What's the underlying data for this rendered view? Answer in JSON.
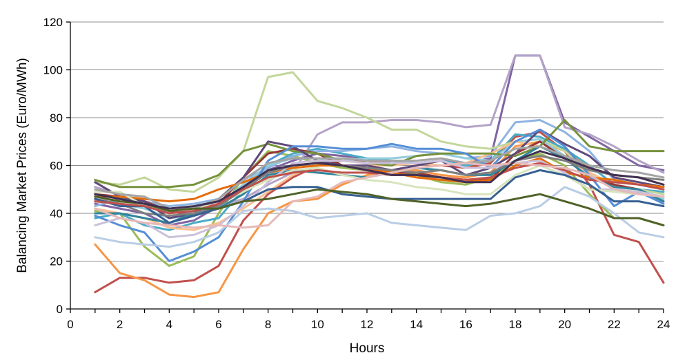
{
  "chart_data": {
    "type": "line",
    "title": "",
    "xlabel": "Hours",
    "ylabel": "Balancing Market Prices (Euro/MWh)",
    "xlim": [
      0,
      24
    ],
    "ylim": [
      0,
      120
    ],
    "xticks": [
      0,
      2,
      4,
      6,
      8,
      10,
      12,
      14,
      16,
      18,
      20,
      22,
      24
    ],
    "yticks": [
      0,
      20,
      40,
      60,
      80,
      100,
      120
    ],
    "grid": "horizontal",
    "legend": "none",
    "x": [
      1,
      2,
      3,
      4,
      5,
      6,
      7,
      8,
      9,
      10,
      11,
      12,
      13,
      14,
      15,
      16,
      17,
      18,
      19,
      20,
      21,
      22,
      23,
      24
    ],
    "series": [
      {
        "color": "#c0504d",
        "values": [
          7,
          13,
          13,
          11,
          12,
          18,
          37,
          48,
          55,
          60,
          62,
          62,
          61,
          61,
          60,
          59,
          61,
          72,
          74,
          66,
          52,
          31,
          28,
          11
        ]
      },
      {
        "color": "#9bbb59",
        "values": [
          41,
          40,
          26,
          18,
          22,
          40,
          55,
          66,
          64,
          61,
          59,
          58,
          58,
          56,
          53,
          52,
          55,
          62,
          65,
          60,
          48,
          38,
          38,
          35
        ]
      },
      {
        "color": "#8064a2",
        "values": [
          44,
          42,
          40,
          35,
          37,
          43,
          52,
          58,
          62,
          65,
          64,
          63,
          61,
          61,
          62,
          61,
          63,
          106,
          106,
          78,
          72,
          66,
          60,
          58
        ]
      },
      {
        "color": "#4bacc6",
        "values": [
          38,
          40,
          35,
          33,
          36,
          38,
          50,
          60,
          65,
          67,
          65,
          63,
          62,
          61,
          62,
          60,
          62,
          73,
          72,
          67,
          60,
          52,
          50,
          49
        ]
      },
      {
        "color": "#f79646",
        "values": [
          27,
          15,
          12,
          6,
          5,
          7,
          25,
          40,
          45,
          46,
          52,
          56,
          58,
          58,
          56,
          55,
          57,
          68,
          70,
          66,
          59,
          56,
          55,
          52
        ]
      },
      {
        "color": "#8db3e2",
        "values": [
          43,
          46,
          45,
          43,
          44,
          46,
          54,
          59,
          64,
          66,
          66,
          67,
          68,
          66,
          65,
          63,
          64,
          78,
          79,
          74,
          66,
          54,
          52,
          50
        ]
      },
      {
        "color": "#b3a2c7",
        "values": [
          51,
          48,
          45,
          41,
          40,
          43,
          46,
          52,
          57,
          73,
          78,
          78,
          79,
          79,
          78,
          76,
          77,
          106,
          106,
          76,
          73,
          68,
          62,
          57
        ]
      },
      {
        "color": "#c3d69b",
        "values": [
          53,
          52,
          55,
          50,
          49,
          55,
          66,
          97,
          99,
          87,
          84,
          80,
          75,
          75,
          70,
          68,
          67,
          70,
          71,
          66,
          57,
          52,
          50,
          48
        ]
      },
      {
        "color": "#93cddd",
        "values": [
          45,
          44,
          42,
          38,
          39,
          44,
          52,
          60,
          63,
          63,
          62,
          63,
          63,
          64,
          65,
          63,
          62,
          70,
          71,
          64,
          56,
          51,
          50,
          46
        ]
      },
      {
        "color": "#fac090",
        "values": [
          42,
          40,
          38,
          34,
          33,
          36,
          42,
          49,
          56,
          60,
          60,
          60,
          60,
          61,
          60,
          61,
          65,
          70,
          68,
          63,
          57,
          52,
          50,
          45
        ]
      },
      {
        "color": "#953735",
        "values": [
          48,
          47,
          45,
          41,
          39,
          44,
          55,
          65,
          67,
          65,
          60,
          58,
          57,
          57,
          55,
          54,
          54,
          65,
          70,
          63,
          55,
          52,
          50,
          45
        ]
      },
      {
        "color": "#76923c",
        "values": [
          54,
          51,
          51,
          51,
          52,
          56,
          66,
          69,
          66,
          65,
          62,
          61,
          60,
          64,
          65,
          65,
          65,
          64,
          68,
          79,
          68,
          66,
          66,
          66
        ]
      },
      {
        "color": "#5f497a",
        "values": [
          53,
          47,
          45,
          38,
          40,
          46,
          55,
          70,
          68,
          62,
          60,
          60,
          58,
          60,
          62,
          56,
          59,
          65,
          75,
          69,
          64,
          55,
          53,
          51
        ]
      },
      {
        "color": "#31859c",
        "values": [
          40,
          40,
          38,
          36,
          40,
          42,
          48,
          56,
          58,
          57,
          56,
          55,
          57,
          59,
          58,
          56,
          56,
          62,
          68,
          63,
          55,
          51,
          50,
          45
        ]
      },
      {
        "color": "#e46c0a",
        "values": [
          47,
          47,
          46,
          45,
          46,
          50,
          53,
          57,
          59,
          60,
          60,
          59,
          57,
          55,
          54,
          53,
          54,
          60,
          63,
          57,
          55,
          54,
          52,
          51
        ]
      },
      {
        "color": "#558ed5",
        "values": [
          39,
          35,
          32,
          20,
          24,
          30,
          45,
          62,
          68,
          68,
          67,
          67,
          69,
          67,
          67,
          65,
          59,
          70,
          75,
          68,
          56,
          43,
          49,
          44
        ]
      },
      {
        "color": "#ccc1da",
        "values": [
          35,
          38,
          36,
          30,
          31,
          35,
          43,
          53,
          61,
          62,
          62,
          61,
          61,
          61,
          62,
          59,
          59,
          61,
          62,
          57,
          50,
          50,
          49,
          47
        ]
      },
      {
        "color": "#d7e4bd",
        "values": [
          49,
          49,
          43,
          41,
          42,
          44,
          49,
          54,
          58,
          59,
          56,
          54,
          53,
          51,
          50,
          48,
          48,
          56,
          60,
          56,
          50,
          49,
          48,
          47
        ]
      },
      {
        "color": "#b9cde5",
        "values": [
          30,
          28,
          27,
          26,
          28,
          32,
          41,
          42,
          41,
          38,
          39,
          40,
          36,
          35,
          34,
          33,
          39,
          40,
          43,
          51,
          47,
          40,
          32,
          30
        ]
      },
      {
        "color": "#7f7f7f",
        "values": [
          46,
          44,
          40,
          39,
          40,
          43,
          50,
          57,
          60,
          61,
          60,
          59,
          58,
          57,
          58,
          56,
          57,
          62,
          64,
          62,
          58,
          56,
          55,
          54
        ]
      },
      {
        "color": "#a5a5a5",
        "values": [
          50,
          48,
          47,
          42,
          42,
          46,
          54,
          61,
          63,
          63,
          63,
          62,
          62,
          62,
          63,
          61,
          62,
          67,
          68,
          64,
          60,
          58,
          57,
          55
        ]
      },
      {
        "color": "#376092",
        "values": [
          46,
          43,
          43,
          36,
          39,
          42,
          45,
          50,
          51,
          51,
          48,
          47,
          46,
          46,
          46,
          46,
          46,
          55,
          58,
          56,
          52,
          45,
          45,
          43
        ]
      },
      {
        "color": "#c0504d",
        "values": [
          45,
          44,
          43,
          40,
          41,
          44,
          50,
          55,
          57,
          58,
          57,
          57,
          56,
          56,
          55,
          54,
          55,
          59,
          61,
          58,
          54,
          53,
          52,
          50
        ]
      },
      {
        "color": "#e6b9b8",
        "values": [
          42,
          38,
          36,
          35,
          34,
          35,
          34,
          35,
          45,
          47,
          53,
          55,
          57,
          59,
          60,
          61,
          60,
          61,
          60,
          59,
          56,
          50,
          48,
          47
        ]
      },
      {
        "color": "#4f6228",
        "values": [
          47,
          45,
          44,
          41,
          42,
          42,
          45,
          46,
          48,
          50,
          49,
          48,
          46,
          45,
          44,
          43,
          44,
          46,
          48,
          45,
          42,
          38,
          38,
          35
        ]
      },
      {
        "color": "#403152",
        "values": [
          48,
          46,
          44,
          42,
          43,
          45,
          51,
          58,
          60,
          61,
          60,
          58,
          56,
          56,
          55,
          53,
          53,
          62,
          66,
          63,
          59,
          56,
          55,
          52
        ]
      }
    ]
  }
}
